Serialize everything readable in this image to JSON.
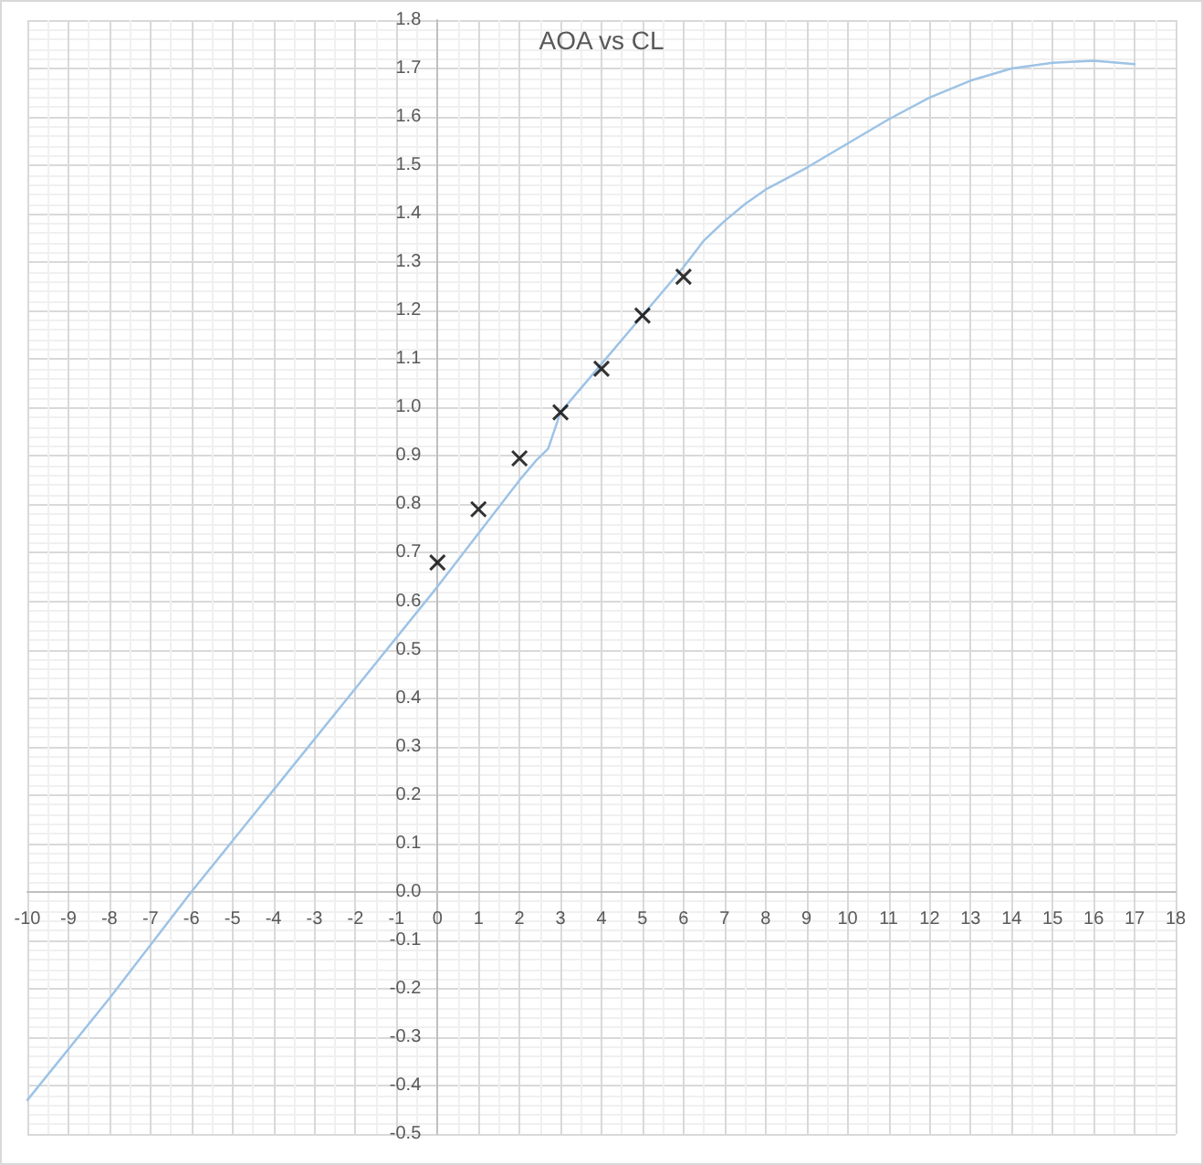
{
  "chart_data": {
    "type": "line",
    "title": "AOA vs CL",
    "xlim": [
      -10,
      18
    ],
    "xticks": [
      -10,
      -9,
      -8,
      -7,
      -6,
      -5,
      -4,
      -3,
      -2,
      -1,
      0,
      1,
      2,
      3,
      4,
      5,
      6,
      7,
      8,
      9,
      10,
      11,
      12,
      13,
      14,
      15,
      16,
      17,
      18
    ],
    "ylim": [
      -0.5,
      1.8
    ],
    "yticks": [
      -0.5,
      -0.4,
      -0.3,
      -0.2,
      -0.1,
      {
        "value": 0,
        "label": "0.0"
      },
      0.1,
      0.2,
      0.3,
      0.4,
      0.5,
      0.6,
      0.7,
      0.8,
      0.9,
      {
        "value": 1,
        "label": "1.0"
      },
      1.1,
      1.2,
      1.3,
      1.4,
      1.5,
      1.6,
      1.7,
      1.8
    ],
    "grid": true,
    "series": [
      {
        "color": "#9dc3e6",
        "marker": "none",
        "x": [
          -10,
          -8,
          -6,
          -4,
          -2,
          0,
          1,
          2,
          2.4,
          2.7,
          3,
          4,
          5,
          6,
          6.5,
          7,
          7.5,
          8,
          9,
          10,
          11,
          12,
          13,
          14,
          15,
          16,
          17
        ],
        "values": [
          -0.43,
          -0.22,
          0.0,
          0.21,
          0.42,
          0.63,
          0.74,
          0.85,
          0.89,
          0.915,
          0.99,
          1.09,
          1.19,
          1.29,
          1.345,
          1.385,
          1.42,
          1.45,
          1.495,
          1.545,
          1.595,
          1.64,
          1.675,
          1.7,
          1.712,
          1.716,
          1.709
        ]
      },
      {
        "type": "scatter",
        "color": "#000000",
        "marker": "cross",
        "x": [
          0,
          1,
          2,
          3,
          4,
          5,
          6
        ],
        "values": [
          0.68,
          0.79,
          0.895,
          0.99,
          1.08,
          1.19,
          1.27
        ]
      }
    ]
  }
}
